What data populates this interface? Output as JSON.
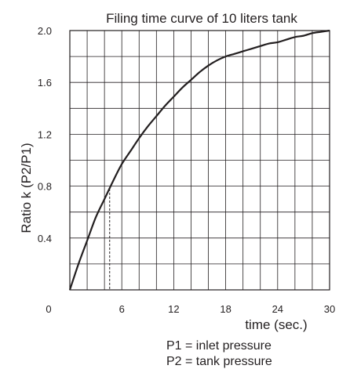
{
  "chart_data": {
    "type": "line",
    "title": "Filing time curve of 10 liters tank",
    "xlabel": "time (sec.)",
    "ylabel": "Ratio k (P2/P1)",
    "xlim": [
      0,
      30
    ],
    "ylim": [
      0,
      2.0
    ],
    "x_ticks": [
      0,
      6,
      12,
      18,
      24,
      30
    ],
    "x_tick_labels": [
      "0",
      "6",
      "12",
      "18",
      "24",
      "30"
    ],
    "y_ticks": [
      0.4,
      0.8,
      1.2,
      1.6,
      2.0
    ],
    "y_tick_labels": [
      "0.4",
      "0.8",
      "1.2",
      "1.6",
      "2.0"
    ],
    "grid": true,
    "x_grid_step": 2,
    "y_grid_step": 0.2,
    "series": [
      {
        "x": [
          0,
          1,
          2,
          3,
          4,
          5,
          6,
          7,
          8,
          9,
          10,
          11,
          12,
          13,
          14,
          15,
          16,
          17,
          18,
          19,
          20,
          21,
          22,
          23,
          24,
          25,
          26,
          27,
          28,
          29,
          30
        ],
        "y": [
          0,
          0.2,
          0.38,
          0.56,
          0.7,
          0.84,
          0.97,
          1.07,
          1.17,
          1.26,
          1.34,
          1.42,
          1.49,
          1.56,
          1.62,
          1.68,
          1.73,
          1.77,
          1.8,
          1.82,
          1.84,
          1.86,
          1.88,
          1.9,
          1.91,
          1.93,
          1.95,
          1.96,
          1.98,
          1.99,
          2.0
        ],
        "color": "#231f20"
      }
    ],
    "annotation": {
      "type": "dashed-vertical",
      "x": 4.6,
      "y": 0.78
    },
    "notes": [
      "P1 = inlet pressure",
      "P2 = tank pressure"
    ]
  }
}
